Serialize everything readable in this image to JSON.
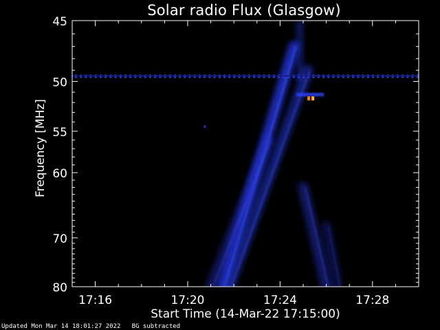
{
  "title": "Solar radio Flux (Glasgow)",
  "footer": {
    "updated": "Updated Mon Mar 14 18:01:27 2022",
    "mode": "BG subtracted"
  },
  "colors": {
    "background": "#000000",
    "axis": "#ffffff",
    "emission_blue": "#2233cc",
    "hot_spot": "#ff7a10"
  },
  "chart_data": {
    "type": "heatmap",
    "title": "Solar radio Flux (Glasgow)",
    "xlabel": "Start Time (14-Mar-22 17:15:00)",
    "ylabel": "Frequency [MHz]",
    "x_ticks": [
      "17:16",
      "17:20",
      "17:24",
      "17:28"
    ],
    "x_tick_minutes": [
      1,
      5,
      9,
      13
    ],
    "xlim_minutes": [
      0,
      15
    ],
    "y_ticks": [
      45,
      50,
      55,
      60,
      70,
      80
    ],
    "ylim": [
      45,
      80
    ],
    "y_scale": "reciprocal",
    "interference_line_mhz": 49.5,
    "hot_spot": {
      "minute": 10.3,
      "mhz": 51.6
    },
    "burst": {
      "description_label": "",
      "lanes": [
        {
          "low_start_min": 6.5,
          "high_end_min": 9.6,
          "from_mhz": 80,
          "to_mhz": 47,
          "intensity": 0.85
        },
        {
          "low_start_min": 6.8,
          "high_end_min": 10.2,
          "from_mhz": 80,
          "to_mhz": 49,
          "intensity": 0.55
        },
        {
          "low_start_min": 6.0,
          "high_end_min": 8.5,
          "from_mhz": 80,
          "to_mhz": 56,
          "intensity": 0.4
        },
        {
          "low_start_min": 11.0,
          "high_end_min": 10.0,
          "from_mhz": 80,
          "to_mhz": 62,
          "intensity": 0.45
        },
        {
          "low_start_min": 11.5,
          "high_end_min": 11.0,
          "from_mhz": 80,
          "to_mhz": 68,
          "intensity": 0.3
        }
      ]
    }
  }
}
